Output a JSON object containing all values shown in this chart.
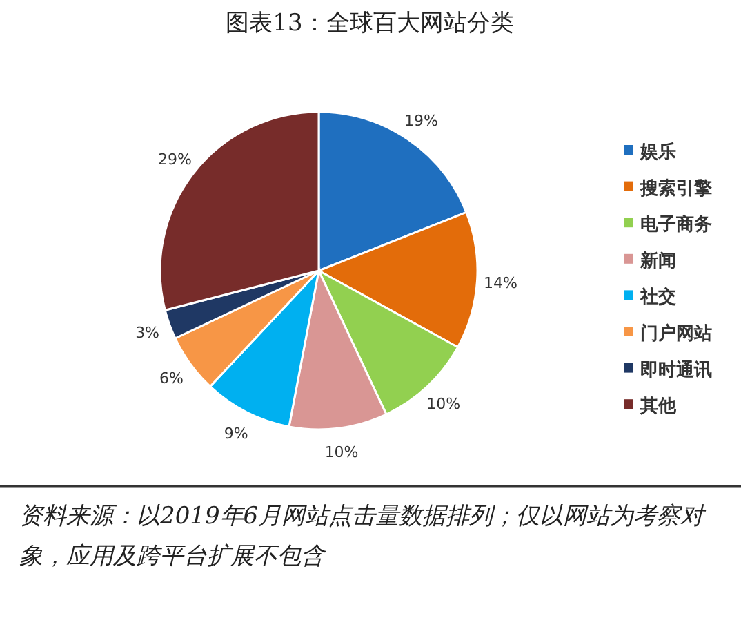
{
  "chart_data": {
    "type": "pie",
    "title": "图表13：全球百大网站分类",
    "categories": [
      "娱乐",
      "搜索引擎",
      "电子商务",
      "新闻",
      "社交",
      "门户网站",
      "即时通讯",
      "其他"
    ],
    "values": [
      19,
      14,
      10,
      10,
      9,
      6,
      3,
      29
    ],
    "colors": [
      "#1f6fbf",
      "#e36c0a",
      "#92d050",
      "#d99694",
      "#00b0f0",
      "#f79646",
      "#1f3864",
      "#772c2a"
    ],
    "value_labels": [
      "19%",
      "14%",
      "10%",
      "10%",
      "9%",
      "6%",
      "3%",
      "29%"
    ],
    "legend": "right",
    "annotations": [
      "资料来源：以2019年6月网站点击量数据排列；仅以网站为考察对象，应用及跨平台扩展不包含"
    ]
  }
}
